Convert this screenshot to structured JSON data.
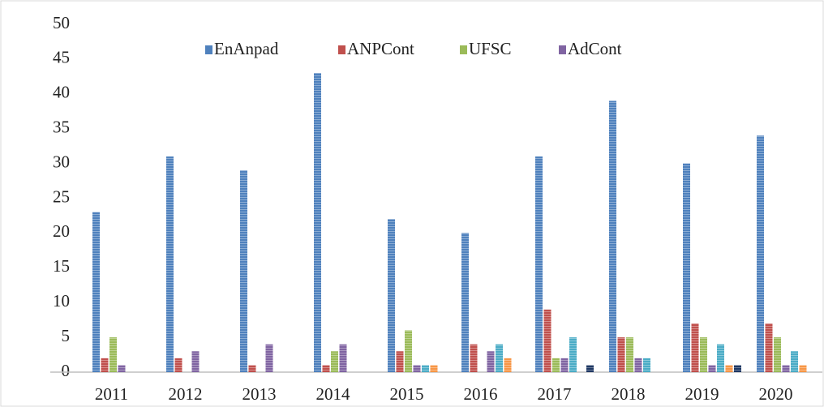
{
  "chart_data": {
    "type": "bar",
    "categories": [
      "2011",
      "2012",
      "2013",
      "2014",
      "2015",
      "2016",
      "2017",
      "2018",
      "2019",
      "2020"
    ],
    "series": [
      {
        "name": "EnAnpad",
        "color": "#4f81bd",
        "values": [
          23,
          31,
          29,
          43,
          22,
          20,
          31,
          39,
          30,
          34
        ]
      },
      {
        "name": "ANPCont",
        "color": "#c0504d",
        "values": [
          2,
          2,
          1,
          1,
          3,
          4,
          9,
          5,
          7,
          7
        ]
      },
      {
        "name": "UFSC",
        "color": "#9bbb59",
        "values": [
          5,
          0,
          0,
          3,
          6,
          0,
          2,
          5,
          5,
          5
        ]
      },
      {
        "name": "AdCont",
        "color": "#8064a2",
        "values": [
          1,
          3,
          4,
          4,
          1,
          3,
          2,
          2,
          1,
          1
        ]
      },
      {
        "color": "#4bacc6",
        "values": [
          0,
          0,
          0,
          0,
          1,
          4,
          5,
          2,
          4,
          3
        ]
      },
      {
        "color": "#f79646",
        "values": [
          0,
          0,
          0,
          0,
          1,
          2,
          0,
          0,
          1,
          1
        ]
      },
      {
        "color": "#1f3864",
        "values": [
          0,
          0,
          0,
          0,
          0,
          0,
          1,
          0,
          1,
          0
        ]
      }
    ],
    "ylim": [
      0,
      50
    ],
    "yticks": [
      0,
      5,
      10,
      15,
      20,
      25,
      30,
      35,
      40,
      45,
      50
    ],
    "grid": false,
    "legend": "top"
  }
}
